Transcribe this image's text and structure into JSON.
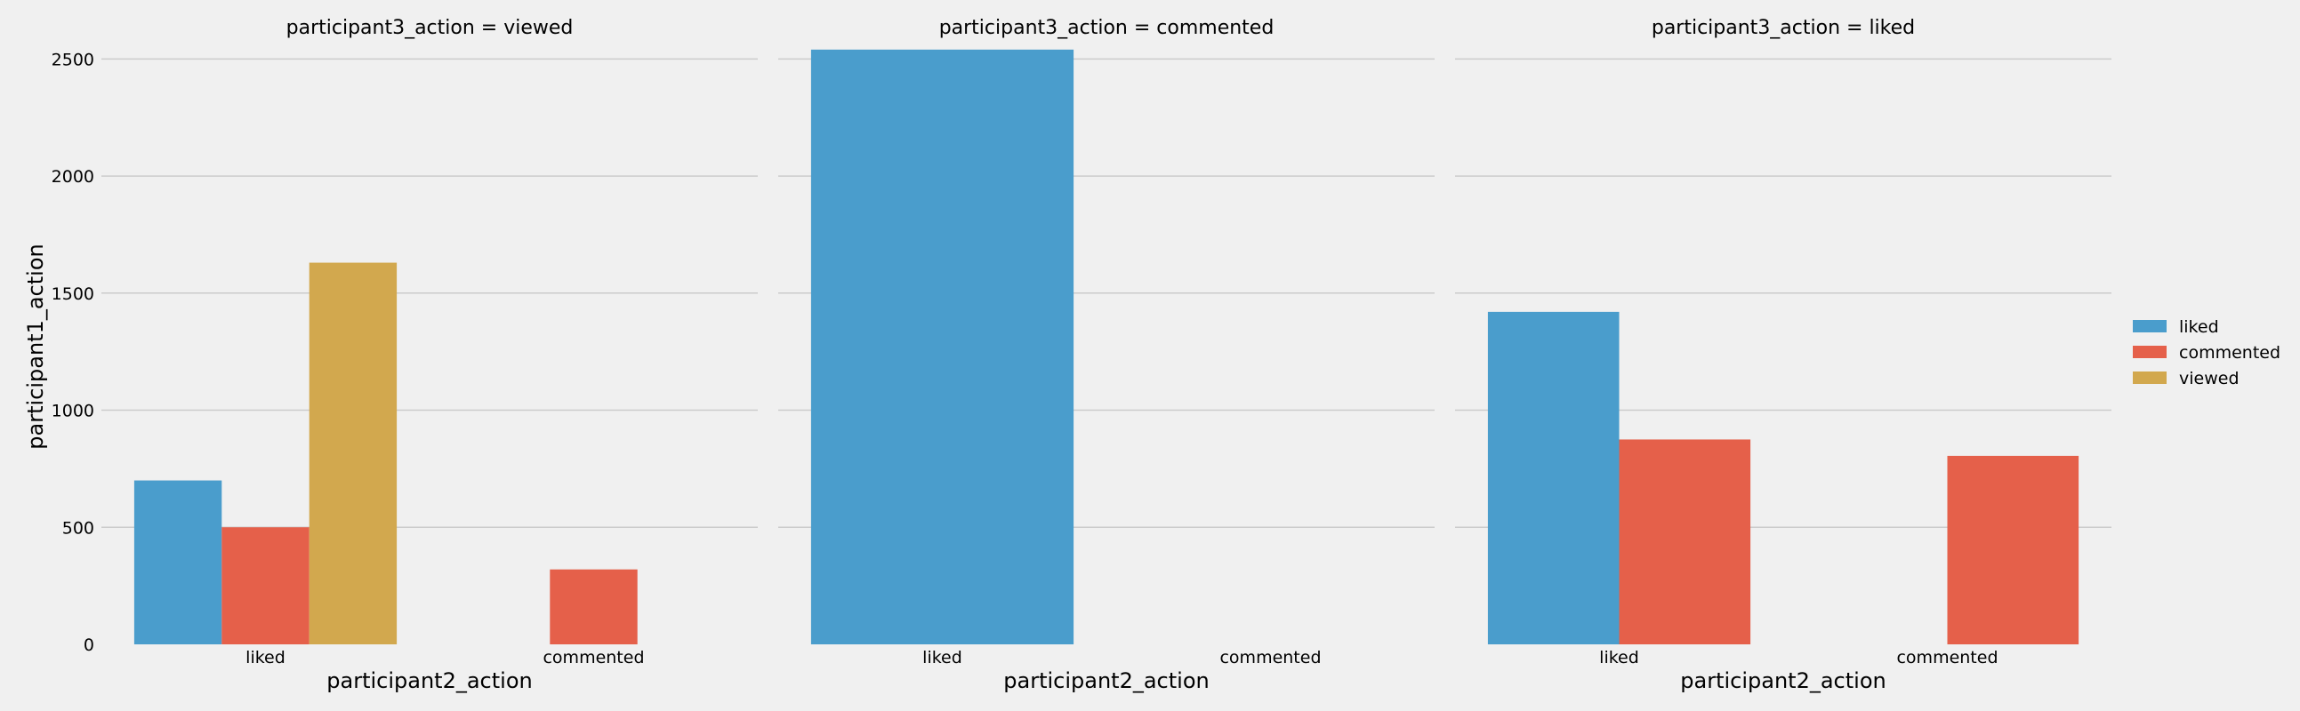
{
  "chart_data": {
    "type": "bar",
    "ylabel": "participant1_action",
    "ylim": [
      0,
      2600
    ],
    "yticks": [
      0,
      500,
      1000,
      1500,
      2000,
      2500
    ],
    "grid": true,
    "legend": {
      "placement": "right",
      "entries": [
        {
          "name": "liked",
          "color": "#4a9dcc"
        },
        {
          "name": "commented",
          "color": "#e5604a"
        },
        {
          "name": "viewed",
          "color": "#d2a84e"
        }
      ]
    },
    "panels": [
      {
        "title": "participant3_action = viewed",
        "xlabel": "participant2_action",
        "categories": [
          "liked",
          "commented"
        ],
        "hue_order": [
          "liked",
          "commented",
          "viewed"
        ],
        "series": [
          {
            "name": "liked",
            "values": [
              700,
              null
            ]
          },
          {
            "name": "commented",
            "values": [
              500,
              320
            ]
          },
          {
            "name": "viewed",
            "values": [
              1630,
              null
            ]
          }
        ]
      },
      {
        "title": "participant3_action = commented",
        "xlabel": "participant2_action",
        "categories": [
          "liked",
          "commented"
        ],
        "hue_order": [
          "liked"
        ],
        "series": [
          {
            "name": "liked",
            "values": [
              2540,
              null
            ]
          }
        ]
      },
      {
        "title": "participant3_action = liked",
        "xlabel": "participant2_action",
        "categories": [
          "liked",
          "commented"
        ],
        "hue_order": [
          "liked",
          "commented"
        ],
        "series": [
          {
            "name": "liked",
            "values": [
              1420,
              null
            ]
          },
          {
            "name": "commented",
            "values": [
              875,
              805
            ]
          }
        ]
      }
    ]
  }
}
